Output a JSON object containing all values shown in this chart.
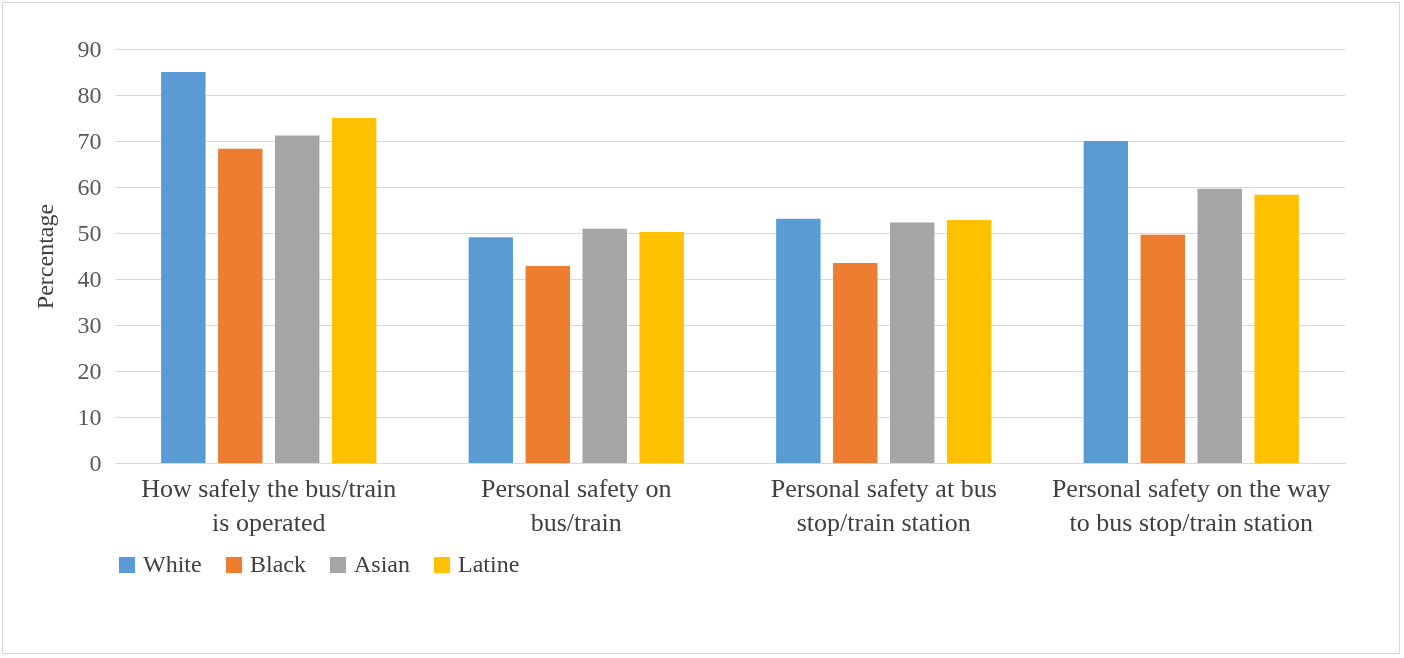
{
  "chart_data": {
    "type": "bar",
    "ylabel": "Percentage",
    "categories": [
      "How safely the bus/train is operated",
      "Personal safety on bus/train",
      "Personal safety at bus stop/train station",
      "Personal safety on the way to bus stop/train station"
    ],
    "series": [
      {
        "name": "White",
        "color": "#5b9bd5",
        "values": [
          85,
          49.1,
          53.1,
          70
        ]
      },
      {
        "name": "Black",
        "color": "#ed7d31",
        "values": [
          68.3,
          42.8,
          43.5,
          49.6
        ]
      },
      {
        "name": "Asian",
        "color": "#a5a5a5",
        "values": [
          71.2,
          50.9,
          52.3,
          59.6
        ]
      },
      {
        "name": "Latine",
        "color": "#ffc000",
        "values": [
          75,
          50.2,
          52.8,
          58.3
        ]
      }
    ],
    "ylim": [
      0,
      90
    ],
    "yticks": [
      0,
      10,
      20,
      30,
      40,
      50,
      60,
      70,
      80,
      90
    ],
    "grid": "y",
    "legend": "bottom"
  }
}
